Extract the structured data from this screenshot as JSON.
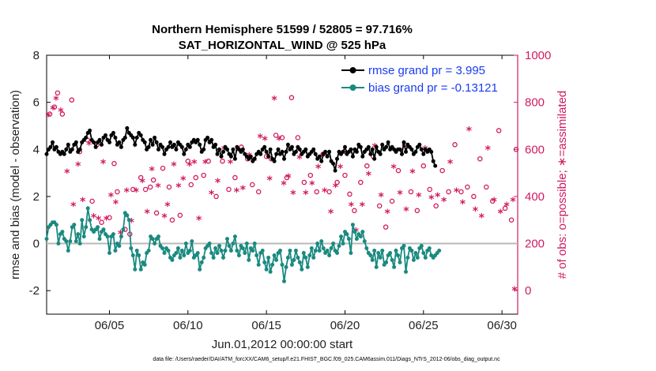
{
  "chart_data": {
    "type": "line",
    "title": "Northern Hemisphere 51599 / 52805 = 97.716%",
    "subtitle": "SAT_HORIZONTAL_WIND @ 525 hPa",
    "xlabel": "Jun.01,2012 00:00:00 start",
    "ylabel": "rmse and bias (model - observation)",
    "ylabel_right": "# of obs: o=possible; ∗=assimilated",
    "xlim": [
      1,
      31
    ],
    "ylim": [
      -3,
      8
    ],
    "ylim_right": [
      -100,
      1000
    ],
    "x_ticks": [
      5,
      10,
      15,
      20,
      25,
      30
    ],
    "x_tick_labels": [
      "06/05",
      "06/10",
      "06/15",
      "06/20",
      "06/25",
      "06/30"
    ],
    "y_ticks": [
      -2,
      0,
      2,
      4,
      6,
      8
    ],
    "y_tick_labels": [
      "-2",
      "0",
      "2",
      "4",
      "6",
      "8"
    ],
    "y_right_ticks": [
      0,
      200,
      400,
      600,
      800,
      1000
    ],
    "y_right_tick_labels": [
      "0",
      "200",
      "400",
      "600",
      "800",
      "1000"
    ],
    "zero_line": 0,
    "legend": [
      {
        "label": "rmse grand pr = 3.995",
        "color": "#000000"
      },
      {
        "label": "bias grand pr = -0.13121",
        "color": "#1a8a80"
      }
    ],
    "x_step_days": 0.125,
    "series": [
      {
        "name": "rmse",
        "color": "#000000",
        "values": [
          3.8,
          4.0,
          4.1,
          4.3,
          4.0,
          4.1,
          3.9,
          3.8,
          3.9,
          3.8,
          4.0,
          4.2,
          3.9,
          4.0,
          4.2,
          4.3,
          3.9,
          4.0,
          4.3,
          4.4,
          4.5,
          4.7,
          4.8,
          4.4,
          4.3,
          4.1,
          4.3,
          4.4,
          4.2,
          4.5,
          4.6,
          4.4,
          4.3,
          4.6,
          4.7,
          4.5,
          4.2,
          4.3,
          4.1,
          4.4,
          4.5,
          4.9,
          4.7,
          4.6,
          4.5,
          4.2,
          4.5,
          4.7,
          4.6,
          4.4,
          4.3,
          4.0,
          4.1,
          4.4,
          4.2,
          4.5,
          4.3,
          4.0,
          4.2,
          4.1,
          3.8,
          4.0,
          4.1,
          4.3,
          4.1,
          4.2,
          4.0,
          4.3,
          4.2,
          4.1,
          3.8,
          4.0,
          4.2,
          4.1,
          4.3,
          4.4,
          4.3,
          4.4,
          4.2,
          3.9,
          4.0,
          4.4,
          4.5,
          4.3,
          4.4,
          4.1,
          4.2,
          3.8,
          4.0,
          3.7,
          3.9,
          4.1,
          4.0,
          3.8,
          3.7,
          4.0,
          3.6,
          4.1,
          4.0,
          3.9,
          4.0,
          3.8,
          3.7,
          3.6,
          3.7,
          3.5,
          3.6,
          3.8,
          3.9,
          3.8,
          4.0,
          4.1,
          3.9,
          3.7,
          4.0,
          3.6,
          3.5,
          3.8,
          4.0,
          3.8,
          3.9,
          3.6,
          3.9,
          4.2,
          4.0,
          4.1,
          3.8,
          3.9,
          4.1,
          4.0,
          3.8,
          3.9,
          4.0,
          3.7,
          3.8,
          3.9,
          4.0,
          3.8,
          3.6,
          3.7,
          3.5,
          3.8,
          3.9,
          3.7,
          3.9,
          3.5,
          3.4,
          3.1,
          3.6,
          3.9,
          3.8,
          3.9,
          4.1,
          3.8,
          3.9,
          4.0,
          3.7,
          4.0,
          3.9,
          4.2,
          4.1,
          3.7,
          3.9,
          4.0,
          4.1,
          3.8,
          4.0,
          3.6,
          4.1,
          3.9,
          3.8,
          4.2,
          4.0,
          4.1,
          4.3,
          4.0,
          4.1,
          4.0,
          3.9,
          4.0,
          4.0,
          3.8,
          4.3,
          3.9,
          4.2,
          4.1,
          4.0,
          3.8,
          3.9,
          4.1,
          4.2,
          4.0,
          3.8,
          4.0,
          3.9,
          4.0,
          3.9,
          3.5,
          3.3
        ]
      },
      {
        "name": "bias",
        "color": "#1a8a80",
        "values": [
          0.2,
          0.7,
          0.8,
          0.9,
          0.9,
          0.8,
          0.0,
          0.4,
          0.5,
          0.2,
          0.1,
          -0.3,
          0.1,
          0.7,
          0.8,
          0.1,
          0.4,
          0.0,
          1.0,
          0.3,
          0.7,
          1.5,
          1.0,
          0.6,
          0.5,
          0.6,
          0.7,
          0.2,
          0.5,
          0.6,
          0.4,
          0.3,
          -0.4,
          0.3,
          0.4,
          -0.3,
          0.0,
          -0.1,
          0.3,
          0.6,
          1.3,
          1.2,
          1.0,
          -0.2,
          -0.5,
          -1.1,
          -0.3,
          -0.5,
          -1.1,
          -0.8,
          -0.9,
          -0.4,
          -0.3,
          0.3,
          0.2,
          0.0,
          0.2,
          0.3,
          -0.1,
          -0.2,
          -0.4,
          -0.2,
          -0.3,
          -0.6,
          -0.7,
          -0.5,
          -0.4,
          -0.2,
          -0.6,
          -0.3,
          -0.5,
          0.0,
          -0.4,
          -0.3,
          0.1,
          -0.6,
          -0.5,
          -0.4,
          -1.1,
          -0.8,
          -0.6,
          -0.2,
          -0.1,
          0.0,
          -0.4,
          -0.6,
          -0.2,
          -0.4,
          -0.1,
          -0.3,
          -0.6,
          -0.3,
          0.2,
          -0.1,
          -0.3,
          0.0,
          0.3,
          -0.3,
          -0.5,
          -0.1,
          -0.2,
          -0.4,
          0.0,
          -0.7,
          -0.2,
          -0.3,
          0.0,
          -0.5,
          -0.9,
          -0.4,
          -0.3,
          -0.8,
          -1.1,
          -0.6,
          -1.2,
          -0.9,
          -0.5,
          -0.7,
          -0.4,
          -0.3,
          -0.9,
          -1.6,
          -1.0,
          -0.6,
          -0.3,
          -0.9,
          -0.7,
          -0.3,
          -0.6,
          -0.8,
          -1.1,
          -0.4,
          -0.6,
          -1.0,
          -0.5,
          -0.2,
          -0.6,
          -0.3,
          0.0,
          -0.3,
          0.1,
          -0.2,
          -0.4,
          -0.3,
          -0.5,
          -0.2,
          0.0,
          -0.3,
          -0.4,
          -0.1,
          0.3,
          0.0,
          0.5,
          0.4,
          0.2,
          -0.4,
          0.8,
          0.5,
          0.2,
          0.4,
          0.3,
          0.5,
          0.1,
          -0.2,
          -0.4,
          -0.5,
          -0.7,
          -0.3,
          -1.0,
          -0.4,
          -0.6,
          -0.3,
          -0.9,
          -0.8,
          -0.5,
          -0.4,
          -0.7,
          -1.0,
          -0.3,
          -0.5,
          -0.8,
          -0.2,
          -0.1,
          -1.2,
          -0.6,
          -0.2,
          -0.3,
          -0.7,
          -0.4,
          -0.6,
          -0.2,
          -0.1,
          -0.4,
          -0.6,
          -0.3,
          -0.2,
          -0.5,
          -0.6,
          -0.5,
          -0.4,
          -0.3
        ]
      }
    ],
    "obs_count_points": [
      {
        "name": "possible",
        "marker": "o",
        "color": "#d11a5f",
        "x": [
          1.2,
          1.5,
          1.7,
          2.0,
          2.6,
          3.1,
          3.6,
          3.9,
          4.2,
          4.5,
          5.0,
          5.3,
          5.5,
          6.0,
          6.3,
          6.5,
          7.0,
          7.3,
          7.6,
          7.8,
          8.0,
          8.4,
          8.8,
          9.0,
          9.5,
          10.0,
          10.2,
          10.5,
          11.0,
          11.3,
          11.8,
          12.2,
          12.6,
          13.0,
          13.4,
          13.8,
          14.1,
          14.5,
          15.0,
          15.3,
          15.6,
          16.0,
          16.3,
          16.6,
          17.0,
          17.4,
          17.8,
          18.2,
          18.6,
          19.0,
          19.5,
          20.0,
          20.3,
          20.6,
          21.0,
          21.4,
          21.8,
          22.2,
          22.6,
          23.0,
          23.4,
          23.8,
          24.2,
          24.6,
          25.0,
          25.4,
          25.8,
          26.2,
          26.6,
          27.0,
          27.4,
          27.8,
          28.2,
          28.6,
          29.0,
          29.4,
          29.8,
          30.2,
          30.6,
          30.9
        ],
        "y": [
          750,
          780,
          840,
          750,
          810,
          590,
          640,
          380,
          620,
          290,
          310,
          540,
          420,
          260,
          240,
          430,
          480,
          430,
          440,
          470,
          330,
          520,
          440,
          300,
          320,
          550,
          450,
          480,
          490,
          550,
          400,
          550,
          430,
          480,
          610,
          560,
          450,
          420,
          570,
          560,
          660,
          650,
          480,
          820,
          650,
          460,
          490,
          420,
          580,
          420,
          460,
          490,
          410,
          340,
          460,
          530,
          570,
          360,
          270,
          380,
          510,
          620,
          420,
          340,
          530,
          430,
          360,
          510,
          420,
          620,
          420,
          440,
          400,
          560,
          440,
          380,
          680,
          350,
          300,
          600
        ]
      },
      {
        "name": "assimilated",
        "marker": "*",
        "color": "#d11a5f",
        "x": [
          1.1,
          1.4,
          1.6,
          1.9,
          2.3,
          2.7,
          3.0,
          3.3,
          3.7,
          4.0,
          4.3,
          4.6,
          4.8,
          5.1,
          5.4,
          5.7,
          6.1,
          6.4,
          6.7,
          7.1,
          7.4,
          7.7,
          8.1,
          8.5,
          8.7,
          9.1,
          9.4,
          9.7,
          10.1,
          10.4,
          10.7,
          11.1,
          11.5,
          11.9,
          12.3,
          12.7,
          13.1,
          13.5,
          13.9,
          14.2,
          14.6,
          14.9,
          15.2,
          15.5,
          15.8,
          16.1,
          16.4,
          16.7,
          17.1,
          17.5,
          17.9,
          18.3,
          18.7,
          19.1,
          19.4,
          19.7,
          20.1,
          20.4,
          20.7,
          21.1,
          21.5,
          21.9,
          22.3,
          22.7,
          23.1,
          23.5,
          23.9,
          24.3,
          24.7,
          25.1,
          25.5,
          25.9,
          26.3,
          26.7,
          27.1,
          27.5,
          27.9,
          28.3,
          28.7,
          29.1,
          29.5,
          29.9,
          30.3,
          30.7,
          30.8
        ],
        "y": [
          740,
          770,
          810,
          760,
          500,
          360,
          530,
          380,
          620,
          310,
          300,
          540,
          300,
          400,
          370,
          240,
          420,
          290,
          420,
          460,
          330,
          510,
          440,
          310,
          360,
          530,
          440,
          470,
          530,
          540,
          300,
          540,
          410,
          460,
          600,
          540,
          420,
          430,
          570,
          550,
          650,
          640,
          470,
          810,
          640,
          450,
          480,
          410,
          560,
          410,
          450,
          520,
          420,
          330,
          440,
          520,
          580,
          360,
          250,
          360,
          490,
          610,
          400,
          330,
          520,
          410,
          340,
          500,
          400,
          600,
          390,
          400,
          380,
          540,
          420,
          370,
          680,
          340,
          310,
          600,
          380,
          330,
          360,
          380,
          0
        ]
      }
    ]
  },
  "footer": {
    "data_file": "data file: /Users/raeder/DAI/ATM_forcXX/CAM6_setup/f.e21.FHIST_BGC.f09_025.CAM6assim.011/Diags_NTrS_2012-06/obs_diag_output.nc"
  }
}
